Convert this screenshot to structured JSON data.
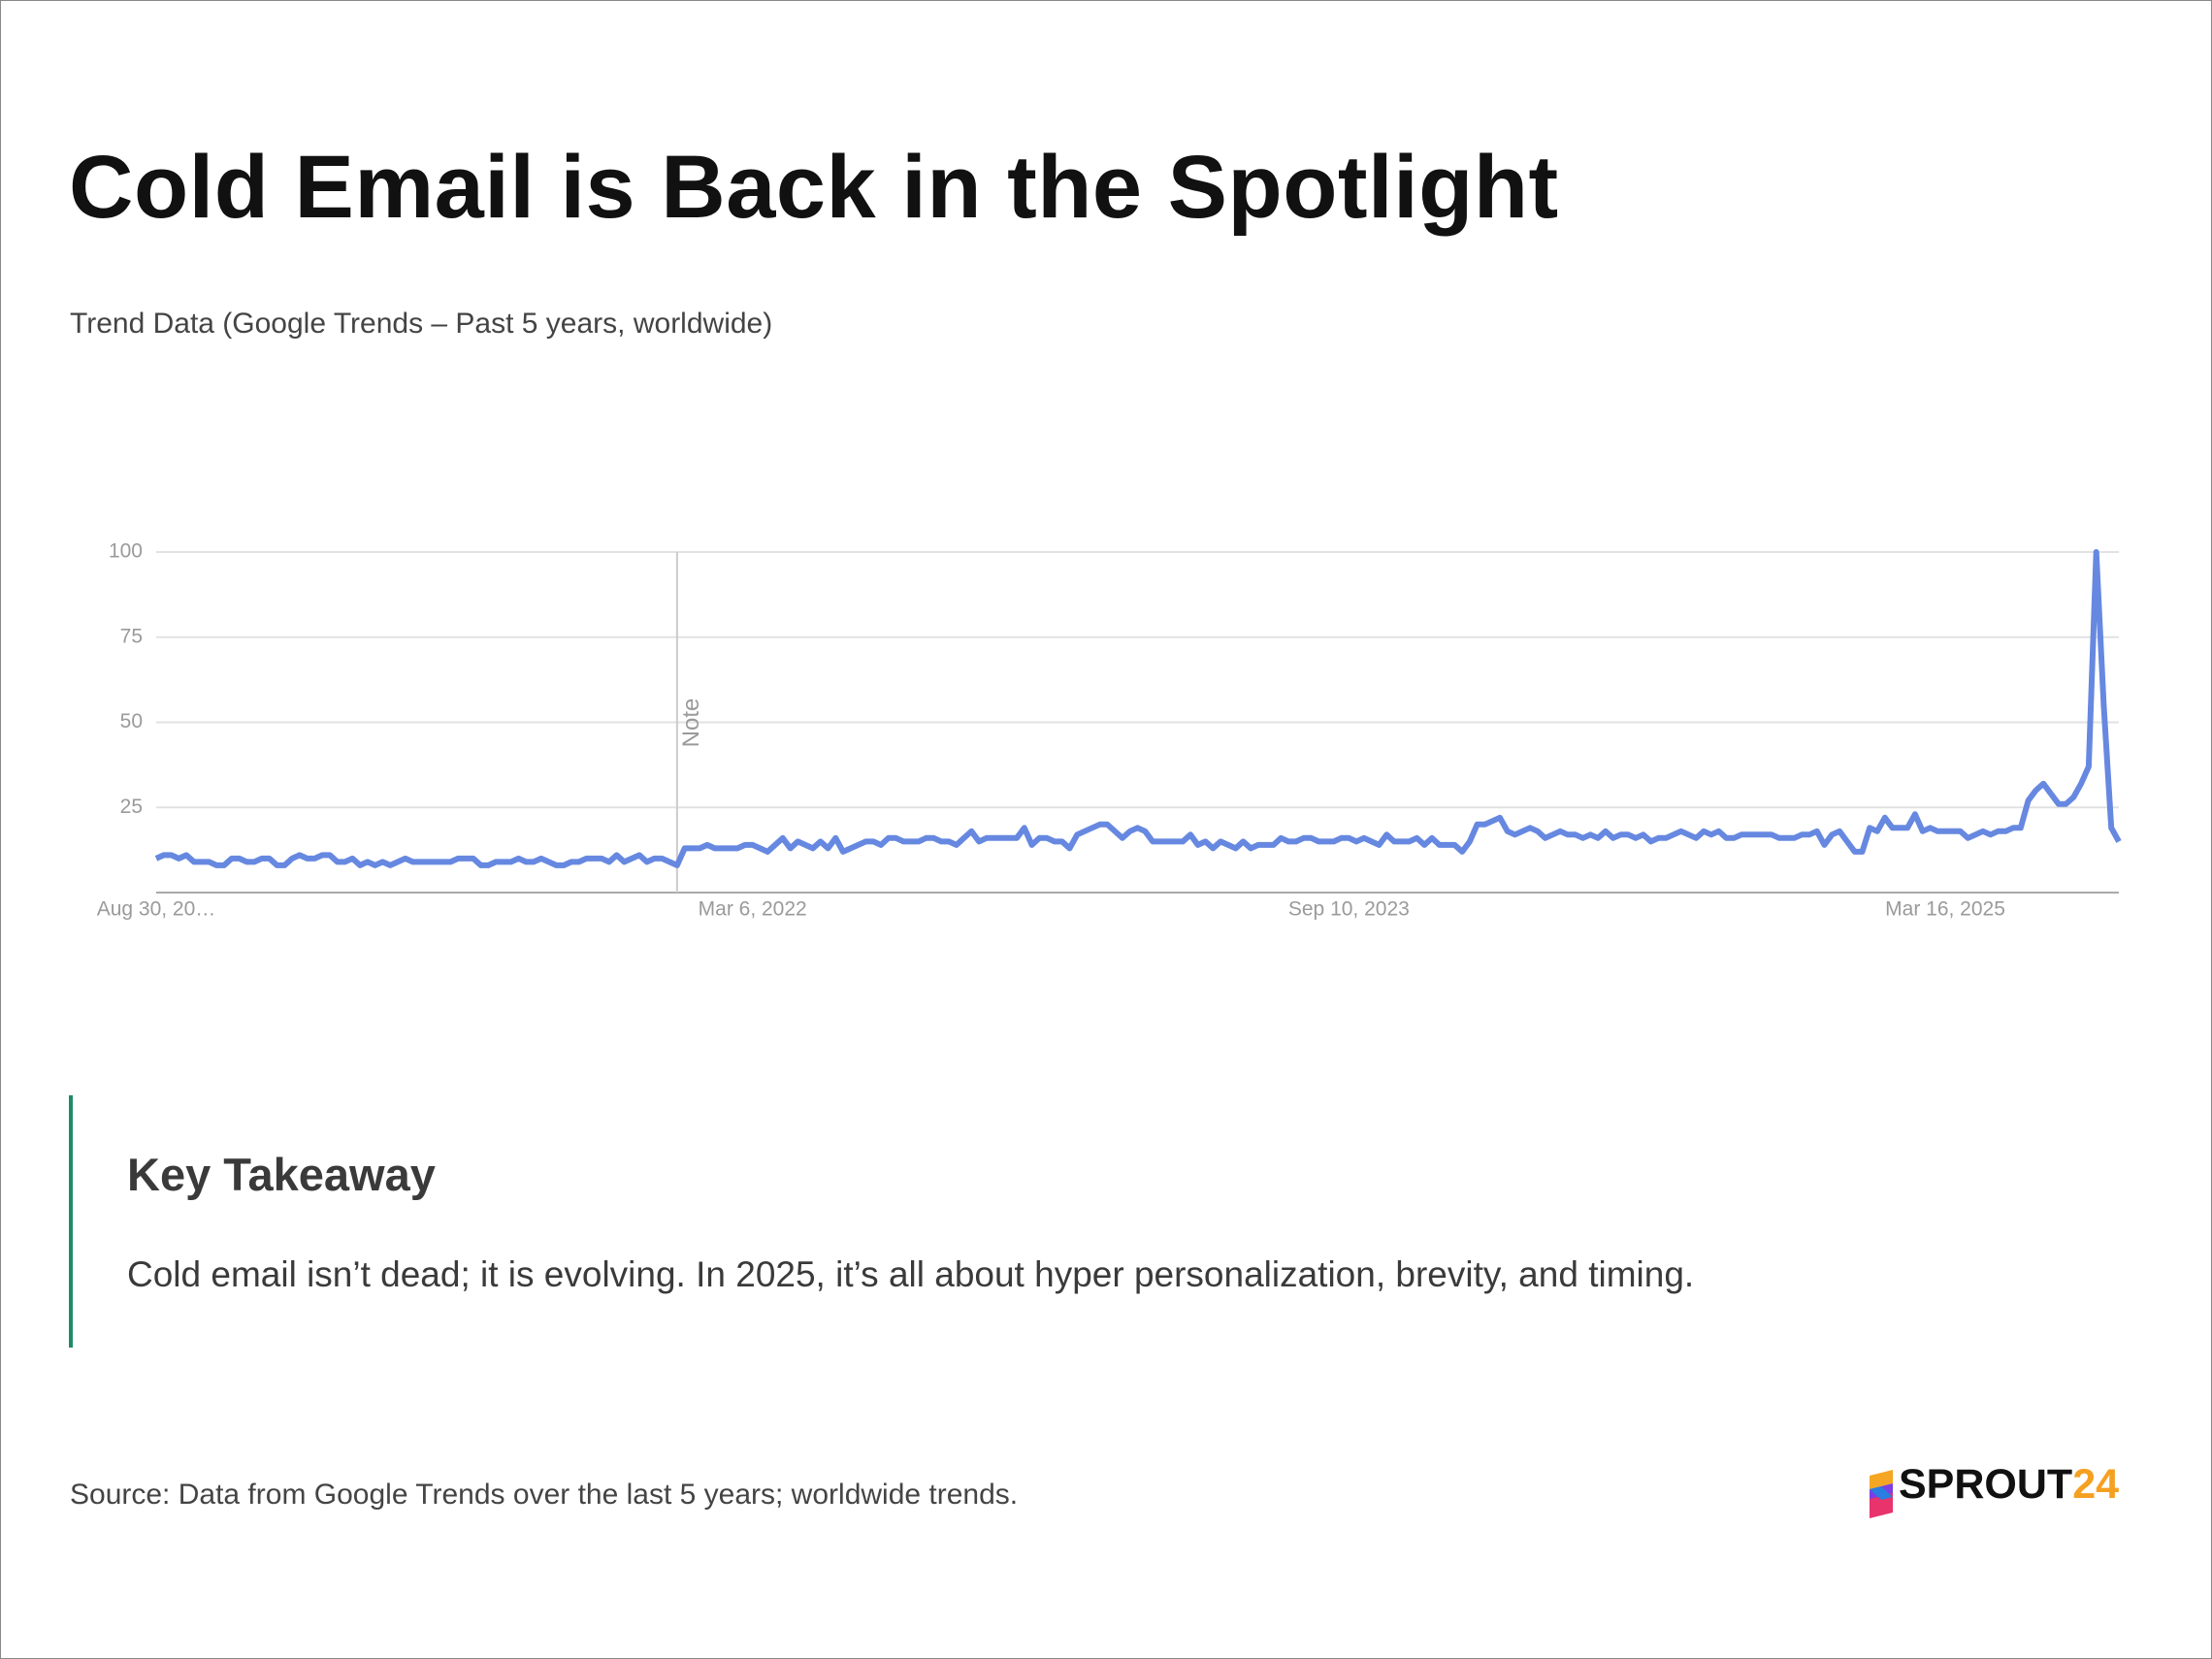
{
  "chart_data": {
    "type": "line",
    "title": "Cold Email is Back in the Spotlight",
    "subtitle": "Trend Data (Google Trends – Past 5 years, worldwide)",
    "categories": [
      "Aug 30, 20…",
      null,
      null,
      null,
      null,
      null,
      null,
      null,
      null,
      null,
      null,
      null,
      null,
      null,
      null,
      null,
      null,
      null,
      null,
      null,
      null,
      null,
      null,
      null,
      null,
      null,
      null,
      null,
      null,
      null,
      null,
      null,
      null,
      null,
      null,
      null,
      null,
      null,
      null,
      null,
      null,
      null,
      null,
      null,
      null,
      null,
      null,
      null,
      null,
      null,
      null,
      null,
      null,
      null,
      null,
      null,
      null,
      null,
      null,
      null,
      null,
      null,
      null,
      null,
      null,
      null,
      null,
      null,
      null,
      null,
      null,
      null,
      null,
      null,
      null,
      null,
      null,
      null,
      null,
      "Mar 6, 2022",
      null,
      null,
      null,
      null,
      null,
      null,
      null,
      null,
      null,
      null,
      null,
      null,
      null,
      null,
      null,
      null,
      null,
      null,
      null,
      null,
      null,
      null,
      null,
      null,
      null,
      null,
      null,
      null,
      null,
      null,
      null,
      null,
      null,
      null,
      null,
      null,
      null,
      null,
      null,
      null,
      null,
      null,
      null,
      null,
      null,
      null,
      null,
      null,
      null,
      null,
      null,
      null,
      null,
      null,
      null,
      null,
      null,
      null,
      null,
      null,
      null,
      null,
      null,
      null,
      null,
      null,
      null,
      null,
      null,
      null,
      null,
      null,
      null,
      null,
      null,
      null,
      null,
      null,
      "Sep 10, 2023",
      null,
      null,
      null,
      null,
      null,
      null,
      null,
      null,
      null,
      null,
      null,
      null,
      null,
      null,
      null,
      null,
      null,
      null,
      null,
      null,
      null,
      null,
      null,
      null,
      null,
      null,
      null,
      null,
      null,
      null,
      null,
      null,
      null,
      null,
      null,
      null,
      null,
      null,
      null,
      null,
      null,
      null,
      null,
      null,
      null,
      null,
      null,
      null,
      null,
      null,
      null,
      null,
      null,
      null,
      null,
      null,
      null,
      null,
      null,
      null,
      null,
      null,
      null,
      null,
      null,
      null,
      null,
      null,
      null,
      null,
      null,
      null,
      null,
      null,
      null,
      null,
      null,
      null,
      "Mar 16, 2025",
      null,
      null,
      null,
      null,
      null,
      null,
      null,
      null,
      null,
      null,
      null,
      null,
      null,
      null,
      null,
      null,
      null,
      null,
      null,
      null,
      null,
      null,
      null
    ],
    "series": [
      {
        "color": "#6688e0",
        "values": [
          10,
          11,
          11,
          10,
          11,
          9,
          9,
          9,
          8,
          8,
          10,
          10,
          9,
          9,
          10,
          10,
          8,
          8,
          10,
          11,
          10,
          10,
          11,
          11,
          9,
          9,
          10,
          8,
          9,
          8,
          9,
          8,
          9,
          10,
          9,
          9,
          9,
          9,
          9,
          9,
          10,
          10,
          10,
          8,
          8,
          9,
          9,
          9,
          10,
          9,
          9,
          10,
          9,
          8,
          8,
          9,
          9,
          10,
          10,
          10,
          9,
          11,
          9,
          10,
          11,
          9,
          10,
          10,
          9,
          8,
          13,
          13,
          13,
          14,
          13,
          13,
          13,
          13,
          14,
          14,
          13,
          12,
          14,
          16,
          13,
          15,
          14,
          13,
          15,
          13,
          16,
          12,
          13,
          14,
          15,
          15,
          14,
          16,
          16,
          15,
          15,
          15,
          16,
          16,
          15,
          15,
          14,
          16,
          18,
          15,
          16,
          16,
          16,
          16,
          16,
          19,
          14,
          16,
          16,
          15,
          15,
          13,
          17,
          18,
          19,
          20,
          20,
          18,
          16,
          18,
          19,
          18,
          15,
          15,
          15,
          15,
          15,
          17,
          14,
          15,
          13,
          15,
          14,
          13,
          15,
          13,
          14,
          14,
          14,
          16,
          15,
          15,
          16,
          16,
          15,
          15,
          15,
          16,
          16,
          15,
          16,
          15,
          14,
          17,
          15,
          15,
          15,
          16,
          14,
          16,
          14,
          14,
          14,
          12,
          15,
          20,
          20,
          21,
          22,
          18,
          17,
          18,
          19,
          18,
          16,
          17,
          18,
          17,
          17,
          16,
          17,
          16,
          18,
          16,
          17,
          17,
          16,
          17,
          15,
          16,
          16,
          17,
          18,
          17,
          16,
          18,
          17,
          18,
          16,
          16,
          17,
          17,
          17,
          17,
          17,
          16,
          16,
          16,
          17,
          17,
          18,
          14,
          17,
          18,
          15,
          12,
          12,
          19,
          18,
          22,
          19,
          19,
          19,
          23,
          18,
          19,
          18,
          18,
          18,
          18,
          16,
          17,
          18,
          17,
          18,
          18,
          19,
          19,
          27,
          30,
          32,
          29,
          26,
          26,
          28,
          32,
          37,
          100,
          55,
          19,
          15
        ]
      }
    ],
    "ylim": [
      0,
      100
    ],
    "yticks": [
      25,
      50,
      75,
      100
    ],
    "grid": true,
    "annotations": [
      {
        "text": "Note",
        "category": 69
      }
    ]
  },
  "takeaway": {
    "heading": "Key Takeaway",
    "text": "Cold email isn’t dead; it is evolving. In 2025, it’s all about hyper personalization, brevity, and timing."
  },
  "source": "Source: Data from Google Trends over the last 5 years; worldwide trends.",
  "logo": {
    "name": "SPROUT",
    "suffix": "24"
  }
}
